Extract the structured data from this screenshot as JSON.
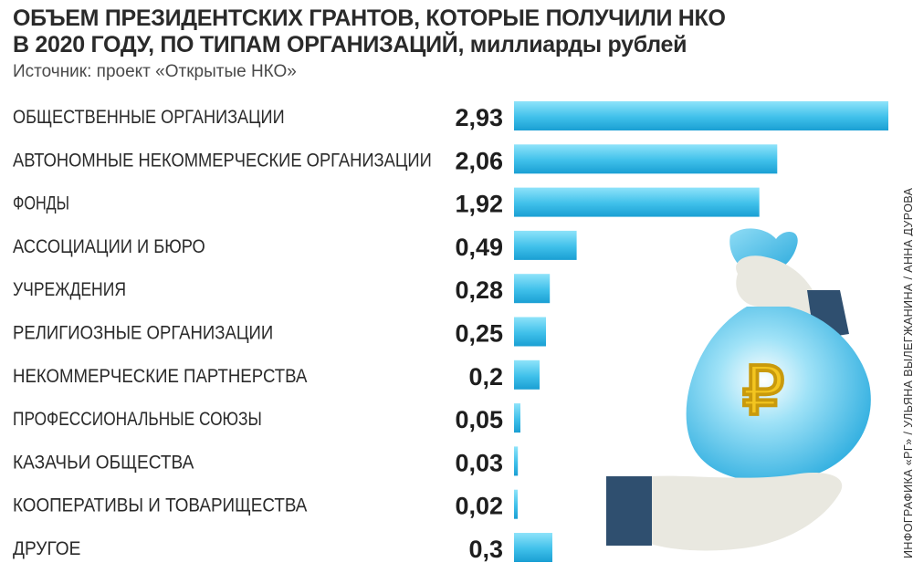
{
  "title_line1": "ОБЪЕМ ПРЕЗИДЕНТСКИХ ГРАНТОВ, КОТОРЫЕ ПОЛУЧИЛИ НКО",
  "title_line2": "В 2020 ГОДУ, ПО ТИПАМ ОРГАНИЗАЦИЙ,",
  "title_unit": "миллиарды рублей",
  "source": "Источник: проект «Открытые НКО»",
  "credit": "ИНФОГРАФИКА «РГ» / УЛЬЯНА ВЫЛЕГЖАНИНА / АННА ДУРОВА",
  "illustration": {
    "money_bag_icon": "money-bag-with-ruble",
    "hand_icon": "open-hand",
    "ruble_sign": "₽"
  },
  "colors": {
    "bar_light": "#7fdcf7",
    "bar_dark": "#1aa3d6",
    "bag": "#27b2e2",
    "hand": "#e9e8e0",
    "cuff": "#2f4f6f",
    "ruble": "#f3c520"
  },
  "chart_data": {
    "type": "bar",
    "orientation": "horizontal",
    "categories": [
      "ОБЩЕСТВЕННЫЕ ОРГАНИЗАЦИИ",
      "АВТОНОМНЫЕ НЕКОММЕРЧЕСКИЕ ОРГАНИЗАЦИИ",
      "ФОНДЫ",
      "АССОЦИАЦИИ И БЮРО",
      "УЧРЕЖДЕНИЯ",
      "РЕЛИГИОЗНЫЕ ОРГАНИЗАЦИИ",
      "НЕКОММЕРЧЕСКИЕ ПАРТНЕРСТВА",
      "ПРОФЕССИОНАЛЬНЫЕ СОЮЗЫ",
      "КАЗАЧЬИ ОБЩЕСТВА",
      "КООПЕРАТИВЫ И ТОВАРИЩЕСТВА",
      "ДРУГОЕ"
    ],
    "values": [
      2.93,
      2.06,
      1.92,
      0.49,
      0.28,
      0.25,
      0.2,
      0.05,
      0.03,
      0.02,
      0.3
    ],
    "value_labels": [
      "2,93",
      "2,06",
      "1,92",
      "0,49",
      "0,28",
      "0,25",
      "0,2",
      "0,05",
      "0,03",
      "0,02",
      "0,3"
    ],
    "xlim": [
      0,
      2.93
    ],
    "grid": false,
    "legend": "none"
  }
}
